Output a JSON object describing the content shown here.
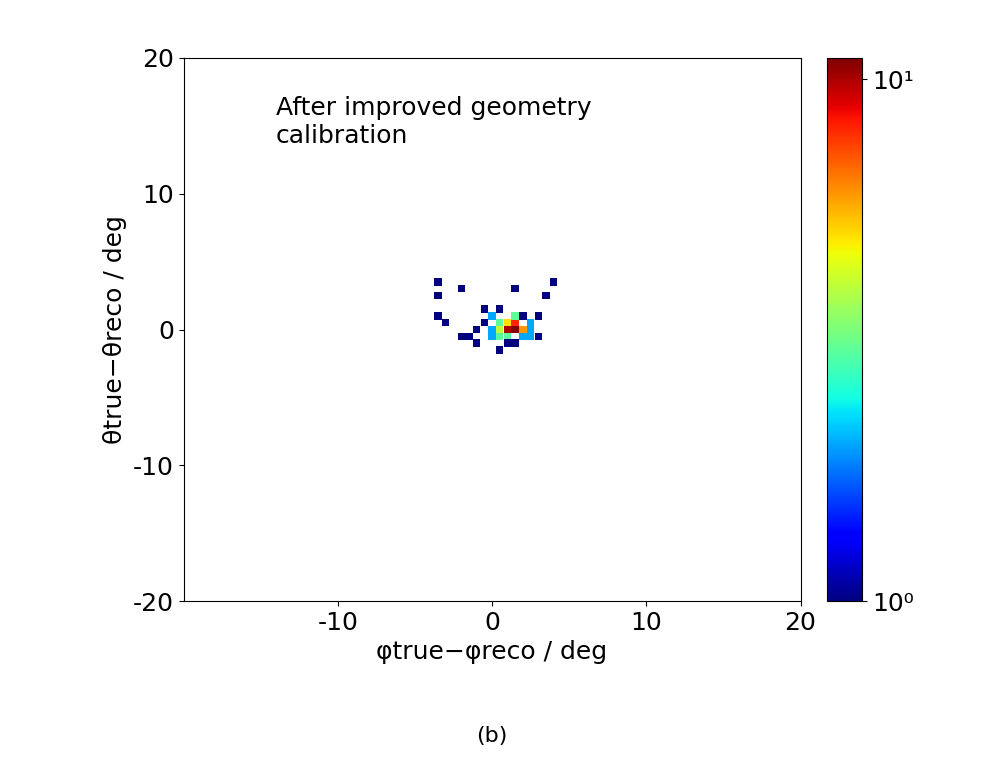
{
  "chart_data": {
    "type": "heatmap",
    "annotation": "After improved geometry\ncalibration",
    "x_label": "φtrue−φreco / deg",
    "y_label": "θtrue−θreco / deg",
    "caption": "(b)",
    "color": "jet",
    "x": [
      -3.5,
      -3.5,
      -2,
      -3.5,
      -3,
      1.5,
      3.5,
      4,
      0,
      0.5,
      1,
      1.5,
      1.5,
      2,
      1,
      0.5,
      2.5,
      0,
      -0.5,
      -1,
      -1.5,
      -1,
      0,
      0.5,
      1,
      2,
      1.5,
      3,
      0.5,
      1,
      2.5,
      2,
      0.5,
      -0.5,
      3,
      -2,
      1.5,
      2.5
    ],
    "y": [
      3.5,
      2.5,
      3,
      1,
      0.5,
      3,
      2.5,
      3.5,
      1,
      0.5,
      0.5,
      0,
      0.5,
      0,
      0,
      0,
      0,
      0,
      0.5,
      0,
      -0.5,
      -1,
      -0.5,
      -0.5,
      -0.5,
      -0.5,
      -1,
      -0.5,
      -1.5,
      -1,
      0.5,
      1,
      1.5,
      1.5,
      1,
      -0.5,
      1,
      -0.5
    ],
    "values": [
      1,
      1,
      1,
      1,
      1,
      1,
      1,
      1,
      2,
      3,
      5,
      11,
      8,
      6,
      10,
      4,
      2,
      2,
      1,
      1,
      1,
      1,
      2,
      3,
      3,
      2,
      1,
      1,
      1,
      1,
      2,
      1,
      1,
      1,
      1,
      1,
      3,
      2
    ],
    "xlim": [
      -20,
      20
    ],
    "xticks": [
      -10,
      0,
      10,
      20
    ],
    "ylim": [
      -20,
      20
    ],
    "yticks": [
      -20,
      -10,
      0,
      10,
      20
    ],
    "color_range": [
      1,
      11
    ],
    "color_ticks": [
      {
        "value": 1,
        "label": "10⁰"
      },
      {
        "value": 10,
        "label": "10¹"
      }
    ]
  }
}
